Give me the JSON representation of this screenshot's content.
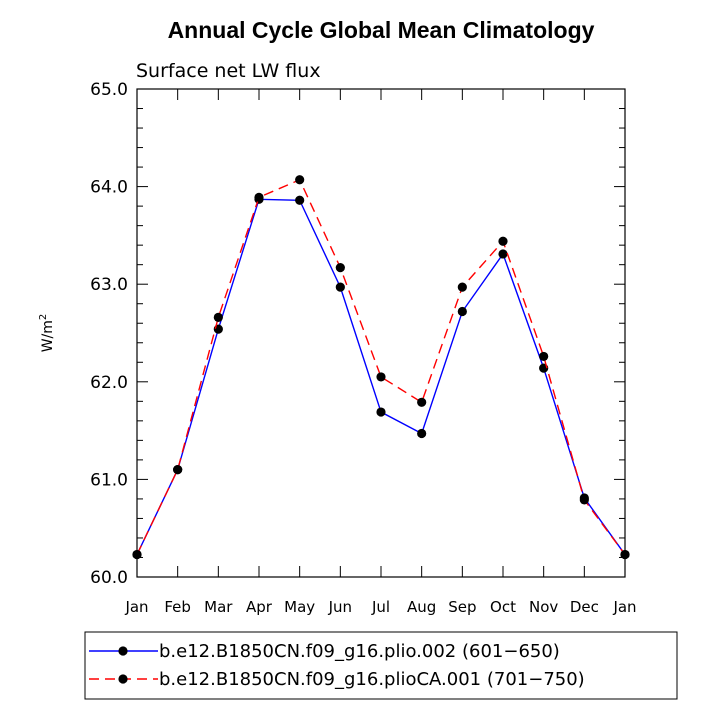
{
  "chart_data": {
    "type": "line",
    "title": "Annual Cycle Global Mean Climatology",
    "subtitle": "Surface net LW flux",
    "ylabel_base": "W/m",
    "ylabel_exp": "2",
    "xlabel": "",
    "categories": [
      "Jan",
      "Feb",
      "Mar",
      "Apr",
      "May",
      "Jun",
      "Jul",
      "Aug",
      "Sep",
      "Oct",
      "Nov",
      "Dec",
      "Jan"
    ],
    "ylim": [
      60.0,
      65.0
    ],
    "yticks": [
      "60.0",
      "61.0",
      "62.0",
      "63.0",
      "64.0",
      "65.0"
    ],
    "grid": false,
    "legend_position": "bottom",
    "series": [
      {
        "name": "b.e12.B1850CN.f09_g16.plio.002 (601−650)",
        "color": "#0000ff",
        "dash": "solid",
        "values": [
          60.23,
          61.1,
          62.54,
          63.87,
          63.86,
          62.97,
          61.69,
          61.47,
          62.72,
          63.31,
          62.14,
          60.81,
          60.23
        ]
      },
      {
        "name": "b.e12.B1850CN.f09_g16.plioCA.001 (701−750)",
        "color": "#ff0000",
        "dash": "dashed",
        "values": [
          60.23,
          61.1,
          62.66,
          63.89,
          64.07,
          63.17,
          62.05,
          61.79,
          62.97,
          63.44,
          62.26,
          60.79,
          60.23
        ]
      }
    ]
  }
}
